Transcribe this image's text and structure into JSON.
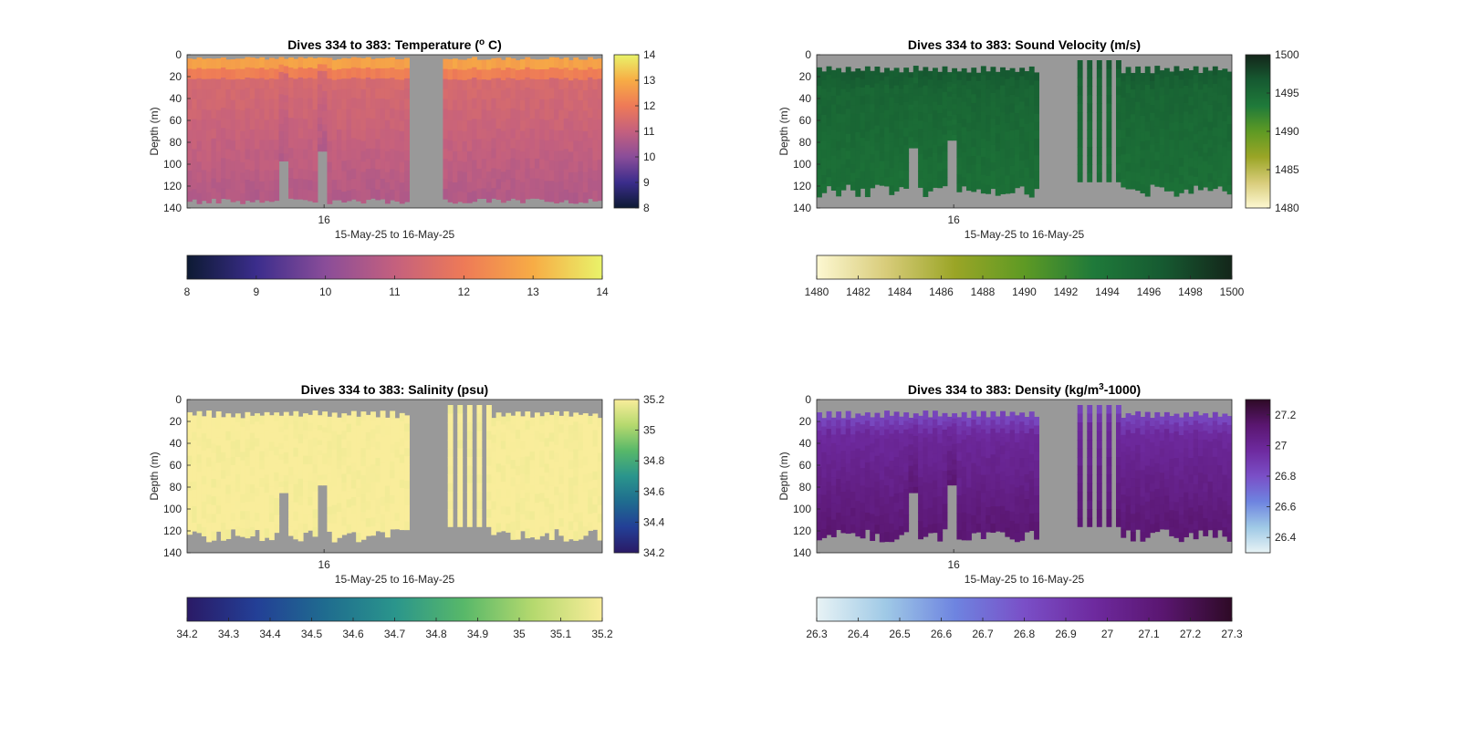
{
  "chart_data": [
    {
      "type": "heatmap",
      "id": "temperature",
      "title": "Dives 334 to 383: Temperature (",
      "title_sup": "o",
      "title_suffix": " C)",
      "xlabel": "15-May-25 to 16-May-25",
      "ylabel": "Depth (m)",
      "x_tick_labels": [
        "16"
      ],
      "y_ticks": [
        0,
        20,
        40,
        60,
        80,
        100,
        120,
        140
      ],
      "ylim": [
        0,
        140
      ],
      "y_reversed": true,
      "clim": [
        8,
        14
      ],
      "colormap": [
        "#0d1a33",
        "#3b2d8c",
        "#8a4d99",
        "#c4607e",
        "#ee7a57",
        "#f7ac45",
        "#e9f36a"
      ],
      "side_colorbar_ticks": [
        "8",
        "9",
        "10",
        "11",
        "12",
        "13",
        "14"
      ],
      "bottom_colorbar_ticks": [
        "8",
        "9",
        "10",
        "11",
        "12",
        "13",
        "14"
      ],
      "surface_value": 12.8,
      "mid_value": 11.4,
      "deep_value": 10.7,
      "missing_color": "#999999"
    },
    {
      "type": "heatmap",
      "id": "sound-velocity",
      "title": "Dives 334 to 383: Sound Velocity (m/s)",
      "xlabel": "15-May-25 to 16-May-25",
      "ylabel": "Depth (m)",
      "x_tick_labels": [
        "16"
      ],
      "y_ticks": [
        0,
        20,
        40,
        60,
        80,
        100,
        120,
        140
      ],
      "ylim": [
        0,
        140
      ],
      "y_reversed": true,
      "clim": [
        1480,
        1500
      ],
      "colormap": [
        "#fdf8d2",
        "#d8cc7a",
        "#9aa526",
        "#5e9a24",
        "#1f7a3a",
        "#165a31",
        "#14261a"
      ],
      "side_colorbar_ticks": [
        "1480",
        "1485",
        "1490",
        "1495",
        "1500"
      ],
      "bottom_colorbar_ticks": [
        "1480",
        "1482",
        "1484",
        "1486",
        "1488",
        "1490",
        "1492",
        "1494",
        "1496",
        "1498",
        "1500"
      ],
      "surface_value": 1496.5,
      "mid_value": 1495.5,
      "deep_value": 1494.5,
      "missing_color": "#999999"
    },
    {
      "type": "heatmap",
      "id": "salinity",
      "title": "Dives 334 to 383: Salinity (psu)",
      "xlabel": "15-May-25 to 16-May-25",
      "ylabel": "Depth (m)",
      "x_tick_labels": [
        "16"
      ],
      "y_ticks": [
        0,
        20,
        40,
        60,
        80,
        100,
        120,
        140
      ],
      "ylim": [
        0,
        140
      ],
      "y_reversed": true,
      "clim": [
        34.2,
        35.2
      ],
      "colormap": [
        "#2a1a66",
        "#233f96",
        "#1f6c8f",
        "#2a958c",
        "#58b869",
        "#b5d96e",
        "#f9ed9b"
      ],
      "side_colorbar_ticks": [
        "34.2",
        "34.4",
        "34.6",
        "34.8",
        "35",
        "35.2"
      ],
      "bottom_colorbar_ticks": [
        "34.2",
        "34.3",
        "34.4",
        "34.5",
        "34.6",
        "34.7",
        "34.8",
        "34.9",
        "35",
        "35.1",
        "35.2"
      ],
      "surface_value": 35.2,
      "mid_value": 35.2,
      "deep_value": 35.2,
      "missing_color": "#999999"
    },
    {
      "type": "heatmap",
      "id": "density",
      "title": "Dives 334 to 383: Density (kg/m",
      "title_sup": "3",
      "title_suffix": "-1000)",
      "xlabel": "15-May-25 to 16-May-25",
      "ylabel": "Depth (m)",
      "x_tick_labels": [
        "16"
      ],
      "y_ticks": [
        0,
        20,
        40,
        60,
        80,
        100,
        120,
        140
      ],
      "ylim": [
        0,
        140
      ],
      "y_reversed": true,
      "clim": [
        26.3,
        27.3
      ],
      "colormap": [
        "#e8f3f5",
        "#9fc9e6",
        "#6e84e0",
        "#7a4fc7",
        "#6e2a9f",
        "#5a1670",
        "#2e0a26"
      ],
      "side_colorbar_ticks": [
        "26.4",
        "26.6",
        "26.8",
        "27",
        "27.2"
      ],
      "side_colorbar_tick_values": [
        26.4,
        26.6,
        26.8,
        27.0,
        27.2
      ],
      "side_colorbar_range": [
        26.3,
        27.3
      ],
      "bottom_colorbar_ticks": [
        "26.3",
        "26.4",
        "26.5",
        "26.6",
        "26.7",
        "26.8",
        "26.9",
        "27",
        "27.1",
        "27.2",
        "27.3"
      ],
      "surface_value": 26.85,
      "mid_value": 26.98,
      "deep_value": 27.12,
      "missing_color": "#999999"
    }
  ]
}
